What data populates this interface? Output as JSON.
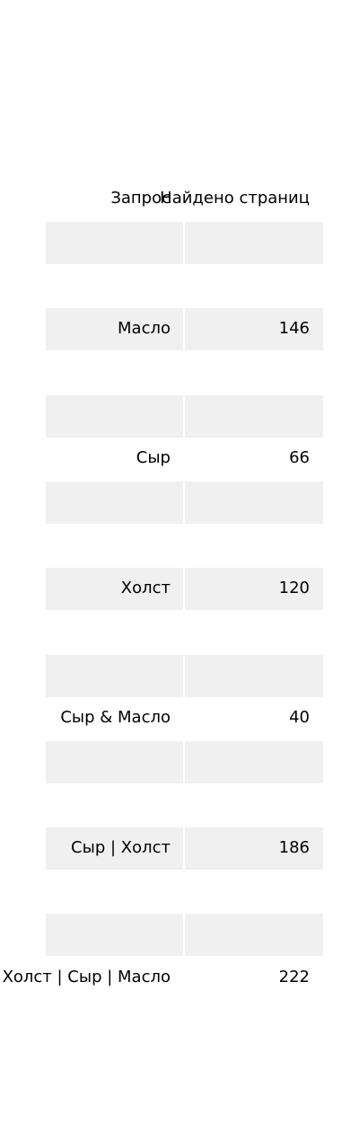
{
  "table": {
    "headers": [
      "Запрос",
      "Найдено страниц"
    ],
    "rows": [
      {
        "query": "Масло",
        "pages": "146"
      },
      {
        "query": "Сыр",
        "pages": "66"
      },
      {
        "query": "Холст",
        "pages": "120"
      },
      {
        "query": "Сыр & Масло",
        "pages": "40"
      },
      {
        "query": "Сыр | Холст",
        "pages": "186"
      },
      {
        "query": "Холст | Сыр | Масло",
        "pages": "222"
      }
    ]
  },
  "colors": {
    "stripe": "#f0f0f0",
    "background": "#ffffff",
    "text": "#000000"
  }
}
